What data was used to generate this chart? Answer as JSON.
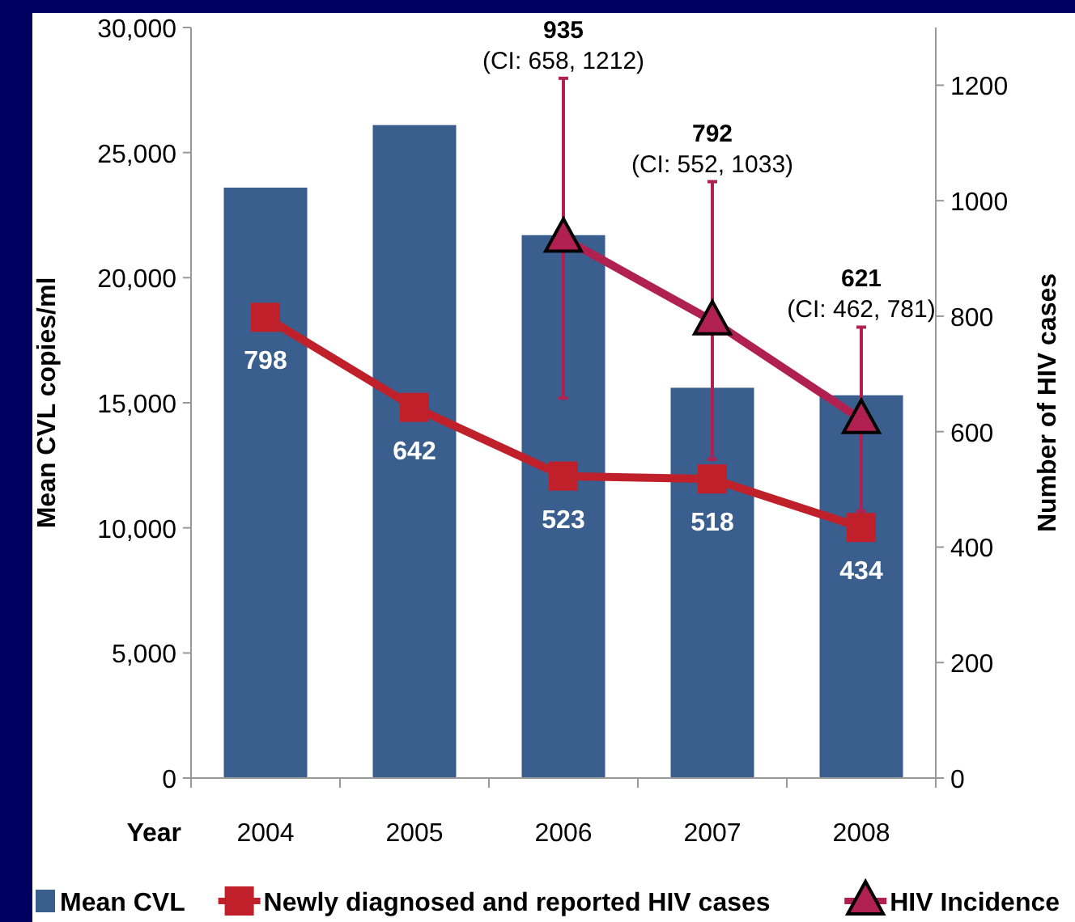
{
  "chart_data": {
    "type": "bar",
    "categories": [
      "2004",
      "2005",
      "2006",
      "2007",
      "2008"
    ],
    "xlabel": "Year",
    "ylabel": "Mean CVL copies/ml",
    "y2label": "Number of HIV cases",
    "ylim": [
      0,
      30000
    ],
    "yticks": [
      {
        "value": 0,
        "label": "0"
      },
      {
        "value": 5000,
        "label": "5,000"
      },
      {
        "value": 10000,
        "label": "10,000"
      },
      {
        "value": 15000,
        "label": "15,000"
      },
      {
        "value": 20000,
        "label": "20,000"
      },
      {
        "value": 25000,
        "label": "25,000"
      },
      {
        "value": 30000,
        "label": "30,000"
      }
    ],
    "y2lim": [
      0,
      1300
    ],
    "y2ticks": [
      0,
      200,
      400,
      600,
      800,
      1000,
      1200
    ],
    "series": [
      {
        "name": "Mean CVL",
        "color": "#3a5f8f",
        "values": [
          23600,
          26100,
          21700,
          15600,
          15300
        ]
      },
      {
        "name": "Newly diagnosed and reported HIV cases",
        "type": "line",
        "axis": "y2",
        "color": "#c0202a",
        "marker": "square",
        "values": [
          798,
          642,
          523,
          518,
          434
        ],
        "value_labels": [
          "798",
          "642",
          "523",
          "518",
          "434"
        ]
      },
      {
        "name": "HIV Incidence",
        "type": "line",
        "axis": "y2",
        "color": "#b02050",
        "marker": "triangle",
        "values": [
          null,
          null,
          935,
          792,
          621
        ],
        "errors": [
          null,
          null,
          [
            658,
            1212
          ],
          [
            552,
            1033
          ],
          [
            462,
            781
          ]
        ]
      }
    ],
    "annotations": [
      "935",
      "(CI: 658, 1212)",
      "792",
      "(CI: 552, 1033)",
      "621",
      "(CI: 462, 781)"
    ],
    "legend": "bottom"
  }
}
